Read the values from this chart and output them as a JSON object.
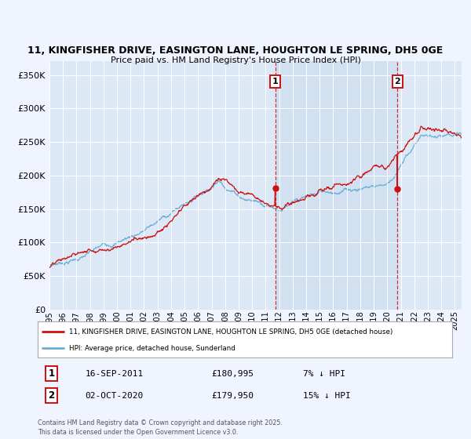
{
  "title_line1": "11, KINGFISHER DRIVE, EASINGTON LANE, HOUGHTON LE SPRING, DH5 0GE",
  "title_line2": "Price paid vs. HM Land Registry's House Price Index (HPI)",
  "background_color": "#f0f4ff",
  "plot_bg_color": "#dce8f5",
  "shade_color": "#ccddf0",
  "hpi_color": "#6aaed6",
  "price_color": "#cc1111",
  "ylabel_ticks": [
    "£0",
    "£50K",
    "£100K",
    "£150K",
    "£200K",
    "£250K",
    "£300K",
    "£350K"
  ],
  "ytick_values": [
    0,
    50000,
    100000,
    150000,
    200000,
    250000,
    300000,
    350000
  ],
  "ylim": [
    0,
    370000
  ],
  "xlim_start": 1995.0,
  "xlim_end": 2025.5,
  "marker1_x": 2011.71,
  "marker1_y": 180995,
  "marker2_x": 2020.75,
  "marker2_y": 179950,
  "marker1_label": "1",
  "marker2_label": "2",
  "legend_line1": "11, KINGFISHER DRIVE, EASINGTON LANE, HOUGHTON LE SPRING, DH5 0GE (detached house)",
  "legend_line2": "HPI: Average price, detached house, Sunderland",
  "table_row1": [
    "1",
    "16-SEP-2011",
    "£180,995",
    "7% ↓ HPI"
  ],
  "table_row2": [
    "2",
    "02-OCT-2020",
    "£179,950",
    "15% ↓ HPI"
  ],
  "footer": "Contains HM Land Registry data © Crown copyright and database right 2025.\nThis data is licensed under the Open Government Licence v3.0.",
  "dashed_line1_x": 2011.71,
  "dashed_line2_x": 2020.75
}
